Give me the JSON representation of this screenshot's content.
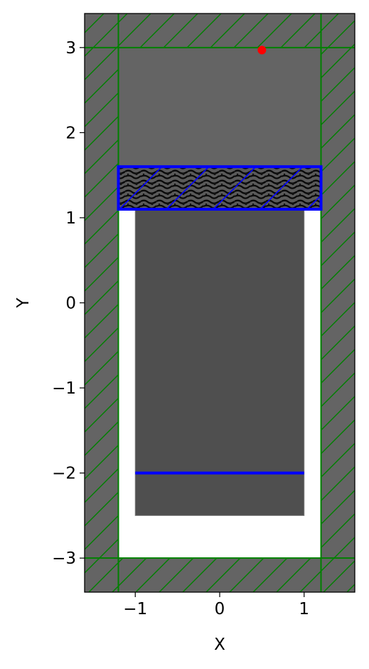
{
  "chart_data": {
    "type": "scatter",
    "title": "",
    "xlabel": "X",
    "ylabel": "Y",
    "xlim": [
      -1.6,
      1.6
    ],
    "ylim": [
      -3.4,
      3.4
    ],
    "xticks": [
      {
        "value": -1,
        "label": "−1"
      },
      {
        "value": 0,
        "label": "0"
      },
      {
        "value": 1,
        "label": "1"
      }
    ],
    "yticks": [
      {
        "value": 3,
        "label": "3"
      },
      {
        "value": 2,
        "label": "2"
      },
      {
        "value": 1,
        "label": "1"
      },
      {
        "value": 0,
        "label": "0"
      },
      {
        "value": -1,
        "label": "−1"
      },
      {
        "value": -2,
        "label": "−2"
      },
      {
        "value": -3,
        "label": "−3"
      }
    ],
    "grid": false,
    "simulation_cell": {
      "x": [
        -1.2,
        1.2
      ],
      "y": [
        -3.0,
        3.0
      ],
      "color": "#ffffff"
    },
    "pml_boundary": {
      "thickness": 0.4,
      "color": "#008000",
      "hatch": "/"
    },
    "waveguide_block": {
      "x": [
        -1.0,
        1.0
      ],
      "y": [
        -2.5,
        1.1
      ],
      "color": "#4f4f4f"
    },
    "design_region": {
      "x": [
        -1.2,
        1.2
      ],
      "y": [
        1.1,
        1.6
      ],
      "outline_color": "#0000ff",
      "hatch": "/"
    },
    "source_line": {
      "x": [
        -1.0,
        1.0
      ],
      "y": -2.0,
      "color": "#0000ff"
    },
    "monitor_point": {
      "x": 0.5,
      "y": 2.97,
      "color": "#ff0000"
    },
    "colors": {
      "background_material": "#646464",
      "frame": "#000000"
    }
  }
}
